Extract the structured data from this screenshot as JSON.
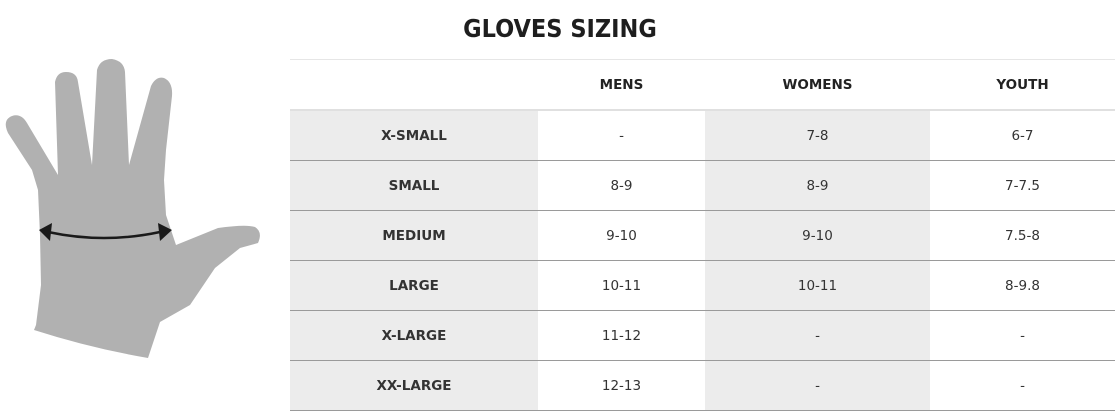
{
  "title": "GLOVES SIZING",
  "columns": [
    "",
    "MENS",
    "WOMENS",
    "YOUTH"
  ],
  "rows": [
    {
      "size": "X-SMALL",
      "mens": "-",
      "womens": "7-8",
      "youth": "6-7"
    },
    {
      "size": "SMALL",
      "mens": "8-9",
      "womens": "8-9",
      "youth": "7-7.5"
    },
    {
      "size": "MEDIUM",
      "mens": "9-10",
      "womens": "9-10",
      "youth": "7.5-8"
    },
    {
      "size": "LARGE",
      "mens": "10-11",
      "womens": "10-11",
      "youth": "8-9.8"
    },
    {
      "size": "X-LARGE",
      "mens": "11-12",
      "womens": "-",
      "youth": "-"
    },
    {
      "size": "XX-LARGE",
      "mens": "12-13",
      "womens": "-",
      "youth": "-"
    }
  ],
  "colors": {
    "hand": "#b1b1b1",
    "shaded_cell": "#ececec",
    "arrow": "#1a1a1a"
  },
  "icons": {
    "illustration": "hand-measurement-icon"
  }
}
